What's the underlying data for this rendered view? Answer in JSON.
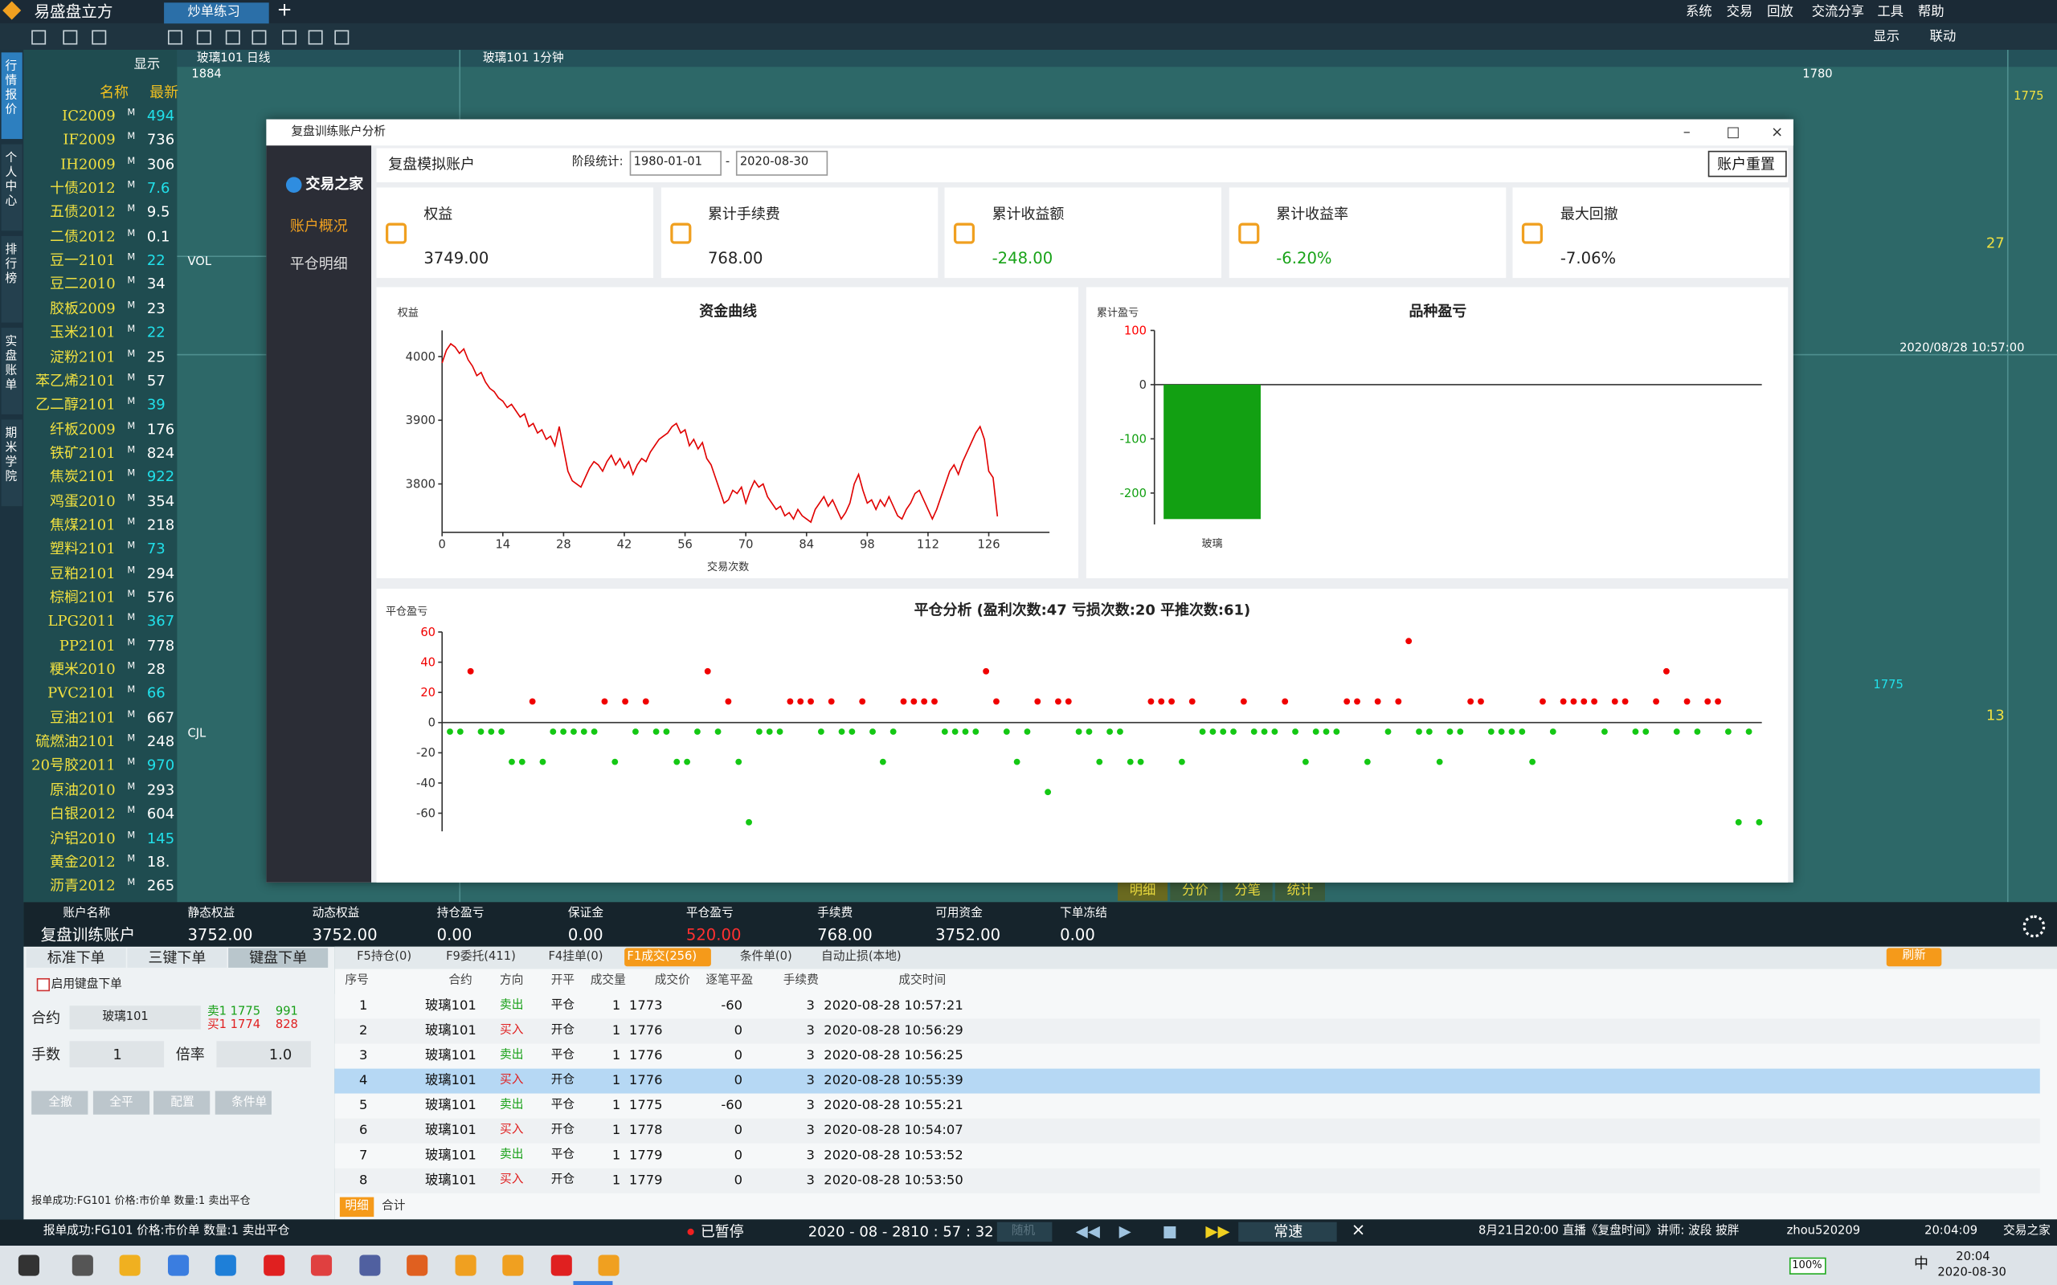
{
  "app": {
    "logo": "易盛盘立方",
    "tab": "炒单练习",
    "menu": [
      "系统",
      "交易",
      "回放",
      "交流分享",
      "工具",
      "帮助"
    ],
    "toolbar_right": [
      "显示",
      "联动"
    ],
    "side_tabs": [
      "行情报价",
      "个人中心",
      "排行榜",
      "实盘账单",
      "期米学院"
    ]
  },
  "quote_list": {
    "display": "显示",
    "header": [
      "名称",
      "最新"
    ],
    "flag": "M",
    "names": [
      "IC2009",
      "IF2009",
      "IH2009",
      "十债2012",
      "五债2012",
      "二债2012",
      "豆一2101",
      "豆二2010",
      "胶板2009",
      "玉米2101",
      "淀粉2101",
      "苯乙烯2101",
      "乙二醇2101",
      "纤板2009",
      "铁矿2101",
      "焦炭2101",
      "鸡蛋2010",
      "焦煤2101",
      "塑料2101",
      "豆粕2101",
      "棕榈2101",
      "LPG2011",
      "PP2101",
      "粳米2010",
      "PVC2101",
      "豆油2101",
      "硫燃油2101",
      "20号胶2011",
      "原油2010",
      "白银2012",
      "沪铝2010",
      "黄金2012",
      "沥青2012"
    ],
    "prices": [
      "494",
      "736",
      "306",
      "7.6",
      "9.5",
      "0.1",
      "22",
      "34",
      "23",
      "22",
      "25",
      "57",
      "39",
      "176",
      "824",
      "922",
      "354",
      "218",
      "73",
      "294",
      "576",
      "367",
      "778",
      "28",
      "66",
      "667",
      "248",
      "970",
      "293.",
      "604",
      "145",
      "18.",
      "265"
    ]
  },
  "bg_charts": {
    "daily": "玻璃101 日线",
    "minute": "玻璃101 1分钟",
    "vol": "VOL",
    "cjl": "CJL",
    "high_daily": "1884",
    "high_minute": "1780",
    "price": "1775",
    "arrow_price": "1775",
    "num_a": "27",
    "num_b": "13",
    "time": "2020/08/28 10:57:00",
    "tabs": [
      "明细",
      "分价",
      "分笔",
      "统计"
    ]
  },
  "dialog": {
    "title": "复盘训练账户分析",
    "brand": "交易之家",
    "nav": [
      "账户概况",
      "平仓明细"
    ],
    "account": "复盘模拟账户",
    "period_label": "阶段统计:",
    "date_from": "1980-01-01",
    "dash": "-",
    "date_to": "2020-08-30",
    "reset": "账户重置",
    "stats": [
      {
        "label": "权益",
        "value": "3749.00"
      },
      {
        "label": "累计手续费",
        "value": "768.00"
      },
      {
        "label": "累计收益额",
        "value": "-248.00"
      },
      {
        "label": "累计收益率",
        "value": "-6.20%"
      },
      {
        "label": "最大回撤",
        "value": "-7.06%"
      }
    ],
    "negative_color": "#19a319"
  },
  "chart_data": [
    {
      "type": "line",
      "title": "资金曲线",
      "ylabel": "权益",
      "xlabel": "交易次数",
      "color": "#e00000",
      "values": [
        3990,
        4010,
        4020,
        4015,
        4005,
        4012,
        3995,
        3985,
        3970,
        3975,
        3960,
        3950,
        3945,
        3935,
        3930,
        3920,
        3925,
        3915,
        3905,
        3910,
        3890,
        3895,
        3880,
        3885,
        3870,
        3875,
        3860,
        3890,
        3855,
        3820,
        3805,
        3800,
        3795,
        3810,
        3825,
        3835,
        3830,
        3820,
        3835,
        3845,
        3830,
        3840,
        3825,
        3835,
        3815,
        3830,
        3840,
        3835,
        3850,
        3860,
        3870,
        3875,
        3880,
        3890,
        3895,
        3880,
        3885,
        3860,
        3870,
        3855,
        3865,
        3840,
        3830,
        3810,
        3790,
        3770,
        3775,
        3790,
        3785,
        3795,
        3770,
        3790,
        3805,
        3795,
        3800,
        3780,
        3770,
        3760,
        3765,
        3750,
        3755,
        3745,
        3760,
        3750,
        3745,
        3740,
        3760,
        3770,
        3780,
        3765,
        3775,
        3760,
        3745,
        3755,
        3770,
        3800,
        3815,
        3790,
        3770,
        3775,
        3760,
        3775,
        3765,
        3780,
        3765,
        3750,
        3745,
        3760,
        3770,
        3785,
        3790,
        3775,
        3760,
        3745,
        3760,
        3780,
        3800,
        3820,
        3830,
        3815,
        3835,
        3850,
        3865,
        3880,
        3890,
        3870,
        3820,
        3810,
        3749
      ],
      "xlim": [
        0,
        140
      ],
      "xticks": [
        0,
        14,
        28,
        42,
        56,
        70,
        84,
        98,
        112,
        126
      ],
      "ylim": [
        3724,
        4041
      ],
      "yticks": [
        3800,
        3900,
        4000
      ]
    },
    {
      "type": "bar",
      "title": "品种盈亏",
      "ylabel": "累计盈亏",
      "categories": [
        "玻璃"
      ],
      "values": [
        -248
      ],
      "color": "#12a012",
      "ylim": [
        -258,
        100
      ],
      "yticks": [
        -200,
        -100,
        0,
        100
      ],
      "pos_color": "#ff0000",
      "neg_color": "#12a012"
    },
    {
      "type": "scatter",
      "title": "平仓分析 (盈利次数:47 亏损次数:20 平推次数:61)",
      "ylabel": "平仓盈亏",
      "values": [
        -6,
        -6,
        34,
        -6,
        -6,
        -6,
        -26,
        -26,
        14,
        -26,
        -6,
        -6,
        -6,
        -6,
        -6,
        14,
        -26,
        14,
        -6,
        14,
        -6,
        -6,
        -26,
        -26,
        -6,
        34,
        -6,
        14,
        -26,
        -66,
        -6,
        -6,
        -6,
        14,
        14,
        14,
        -6,
        14,
        -6,
        -6,
        14,
        -6,
        -26,
        -6,
        14,
        14,
        14,
        14,
        -6,
        -6,
        -6,
        -6,
        34,
        14,
        -6,
        -26,
        -6,
        14,
        -46,
        14,
        14,
        -6,
        -6,
        -26,
        -6,
        -6,
        -26,
        -26,
        14,
        14,
        14,
        -26,
        14,
        -6,
        -6,
        -6,
        -6,
        14,
        -6,
        -6,
        -6,
        14,
        -6,
        -26,
        -6,
        -6,
        -6,
        14,
        14,
        -26,
        14,
        -6,
        14,
        54,
        -6,
        -6,
        -26,
        -6,
        -6,
        14,
        14,
        -6,
        -6,
        -6,
        -6,
        -26,
        14,
        -6,
        14,
        14,
        14,
        14,
        -6,
        14,
        14,
        -6,
        -6,
        14,
        34,
        -6,
        14,
        -6,
        14,
        14,
        -6,
        -66,
        -6,
        -66
      ],
      "ylim": [
        -72,
        60
      ],
      "yticks": [
        -60,
        -40,
        -20,
        0,
        20,
        40,
        60
      ],
      "pos_color": "#f00000",
      "neg_color": "#14c814"
    }
  ],
  "account_bar": {
    "headers": [
      "账户名称",
      "静态权益",
      "动态权益",
      "持仓盈亏",
      "保证金",
      "平仓盈亏",
      "手续费",
      "可用资金",
      "下单冻结"
    ],
    "values": [
      "复盘训练账户",
      "3752.00",
      "3752.00",
      "0.00",
      "0.00",
      "520.00",
      "768.00",
      "3752.00",
      "0.00"
    ]
  },
  "order_panel": {
    "tabs": [
      "标准下单",
      "三键下单",
      "键盘下单"
    ],
    "enable": "启用键盘下单",
    "contract_label": "合约",
    "contract": "玻璃101",
    "ask": "卖1 1775",
    "ask_vol": "991",
    "bid": "买1 1774",
    "bid_vol": "828",
    "qty_label": "手数",
    "qty": "1",
    "mult_label": "倍率",
    "mult": "1.0",
    "buttons": [
      "全撤",
      "全平",
      "配置",
      "条件单"
    ],
    "message": "报单成功:FG101 价格:市价单 数量:1 卖出平仓"
  },
  "trades": {
    "tabs": [
      "F5持仓(0)",
      "F9委托(411)",
      "F4挂单(0)",
      "F1成交(256)",
      "条件单(0)",
      "自动止损(本地)"
    ],
    "refresh": "刷新",
    "columns": [
      "序号",
      "合约",
      "方向",
      "开平",
      "成交量",
      "成交价",
      "逐笔平盈",
      "手续费",
      "成交时间"
    ],
    "rows": [
      [
        1,
        "玻璃101",
        "卖出",
        "平仓",
        1,
        1773,
        -60,
        3,
        "2020-08-28 10:57:21"
      ],
      [
        2,
        "玻璃101",
        "买入",
        "开仓",
        1,
        1776,
        0,
        3,
        "2020-08-28 10:56:29"
      ],
      [
        3,
        "玻璃101",
        "卖出",
        "平仓",
        1,
        1776,
        0,
        3,
        "2020-08-28 10:56:25"
      ],
      [
        4,
        "玻璃101",
        "买入",
        "开仓",
        1,
        1776,
        0,
        3,
        "2020-08-28 10:55:39"
      ],
      [
        5,
        "玻璃101",
        "卖出",
        "平仓",
        1,
        1775,
        -60,
        3,
        "2020-08-28 10:55:21"
      ],
      [
        6,
        "玻璃101",
        "买入",
        "开仓",
        1,
        1778,
        0,
        3,
        "2020-08-28 10:54:07"
      ],
      [
        7,
        "玻璃101",
        "卖出",
        "平仓",
        1,
        1779,
        0,
        3,
        "2020-08-28 10:53:52"
      ],
      [
        8,
        "玻璃101",
        "买入",
        "开仓",
        1,
        1779,
        0,
        3,
        "2020-08-28 10:53:50"
      ]
    ],
    "footer_tabs": [
      "明细",
      "合计"
    ]
  },
  "status": {
    "message": "报单成功:FG101 价格:市价单 数量:1 卖出平仓",
    "paused": "已暂停",
    "date": "2020 - 08 - 28",
    "time": "10 : 57 : 32",
    "random": "随机",
    "speed": "常速",
    "notice": "8月21日20:00 直播《复盘时间》讲师: 波段 披胖",
    "user": "zhou520209",
    "clock": "20:04:09",
    "brand": "交易之家"
  },
  "taskbar": {
    "battery": "100%",
    "ime": "中",
    "time": "20:04",
    "date": "2020-08-30"
  }
}
